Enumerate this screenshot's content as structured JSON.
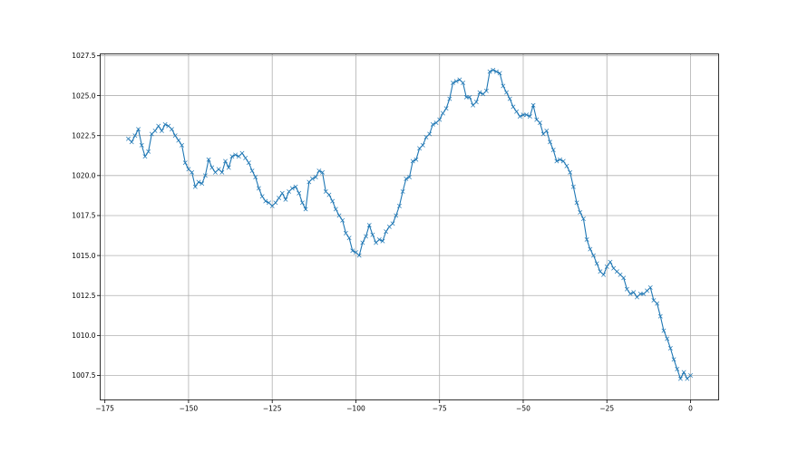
{
  "chart_data": {
    "type": "line",
    "title": "",
    "xlabel": "",
    "ylabel": "",
    "xlim": [
      -176.4,
      8.4
    ],
    "ylim": [
      1005.97,
      1027.61
    ],
    "grid": true,
    "marker": "x",
    "color": "#1f77b4",
    "xticks": [
      -175,
      -150,
      -125,
      -100,
      -75,
      -50,
      -25,
      0
    ],
    "xtick_labels": [
      "−175",
      "−150",
      "−125",
      "−100",
      "−75",
      "−50",
      "−25",
      "0"
    ],
    "yticks": [
      1007.5,
      1010.0,
      1012.5,
      1015.0,
      1017.5,
      1020.0,
      1022.5,
      1025.0,
      1027.5
    ],
    "ytick_labels": [
      "1007.5",
      "1010.0",
      "1012.5",
      "1015.0",
      "1017.5",
      "1020.0",
      "1022.5",
      "1025.0",
      "1027.5"
    ],
    "x_start": -168,
    "x_step": 1,
    "values": [
      1022.3,
      1022.1,
      1022.5,
      1022.9,
      1021.9,
      1021.2,
      1021.5,
      1022.6,
      1022.8,
      1023.1,
      1022.8,
      1023.2,
      1023.1,
      1022.9,
      1022.5,
      1022.2,
      1021.9,
      1020.8,
      1020.4,
      1020.2,
      1019.3,
      1019.6,
      1019.5,
      1020.0,
      1021.0,
      1020.5,
      1020.2,
      1020.4,
      1020.2,
      1020.9,
      1020.5,
      1021.2,
      1021.3,
      1021.2,
      1021.4,
      1021.1,
      1020.8,
      1020.3,
      1019.9,
      1019.2,
      1018.7,
      1018.4,
      1018.3,
      1018.1,
      1018.3,
      1018.6,
      1018.9,
      1018.5,
      1019.0,
      1019.2,
      1019.3,
      1018.9,
      1018.3,
      1017.9,
      1019.6,
      1019.8,
      1019.9,
      1020.3,
      1020.2,
      1019.0,
      1018.8,
      1018.4,
      1017.9,
      1017.5,
      1017.2,
      1016.4,
      1016.1,
      1015.3,
      1015.2,
      1015.0,
      1015.8,
      1016.2,
      1016.9,
      1016.3,
      1015.8,
      1016.0,
      1015.9,
      1016.5,
      1016.8,
      1017.0,
      1017.5,
      1018.1,
      1019.0,
      1019.8,
      1019.9,
      1020.9,
      1021.0,
      1021.7,
      1021.9,
      1022.4,
      1022.6,
      1023.2,
      1023.3,
      1023.5,
      1023.9,
      1024.2,
      1024.8,
      1025.8,
      1025.9,
      1026.0,
      1025.8,
      1024.9,
      1024.9,
      1024.4,
      1024.6,
      1025.2,
      1025.1,
      1025.3,
      1026.5,
      1026.6,
      1026.5,
      1026.4,
      1025.6,
      1025.2,
      1024.8,
      1024.3,
      1024.0,
      1023.7,
      1023.8,
      1023.8,
      1023.7,
      1024.4,
      1023.5,
      1023.3,
      1022.6,
      1022.8,
      1022.1,
      1021.6,
      1020.9,
      1021.0,
      1020.9,
      1020.6,
      1020.2,
      1019.3,
      1018.3,
      1017.7,
      1017.3,
      1016.0,
      1015.4,
      1015.0,
      1014.5,
      1014.0,
      1013.8,
      1014.3,
      1014.6,
      1014.2,
      1014.0,
      1013.8,
      1013.6,
      1012.9,
      1012.6,
      1012.7,
      1012.4,
      1012.6,
      1012.6,
      1012.8,
      1013.0,
      1012.2,
      1012.0,
      1011.2,
      1010.3,
      1009.8,
      1009.2,
      1008.5,
      1007.9,
      1007.3,
      1007.7,
      1007.3,
      1007.5
    ]
  }
}
